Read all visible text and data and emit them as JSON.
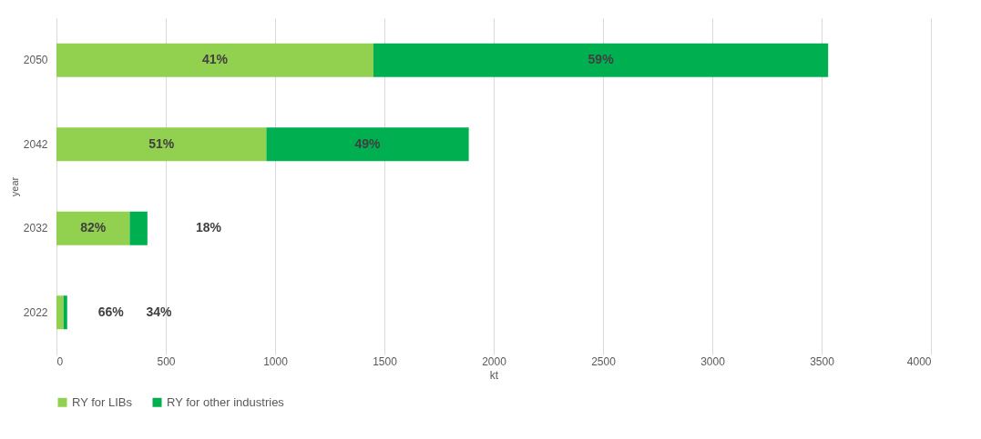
{
  "chart_data": {
    "type": "bar",
    "orientation": "horizontal",
    "stacked": true,
    "xlabel": "kt",
    "ylabel": "year",
    "categories": [
      "2050",
      "2042",
      "2032",
      "2022"
    ],
    "series": [
      {
        "name": "RY for LIBs",
        "color": "#92d050",
        "values": [
          1450,
          960,
          335,
          32
        ]
      },
      {
        "name": "RY for other industries",
        "color": "#00b050",
        "values": [
          2080,
          926,
          81,
          17
        ]
      }
    ],
    "annotations": [
      "41%",
      "59%",
      "51%",
      "49%",
      "82%",
      "18%",
      "66%",
      "34%"
    ],
    "xlim": [
      0,
      4000
    ],
    "xticks": [
      0,
      500,
      1000,
      1500,
      2000,
      2500,
      3000,
      3500,
      4000
    ],
    "grid": "x",
    "legend": "bottom"
  }
}
